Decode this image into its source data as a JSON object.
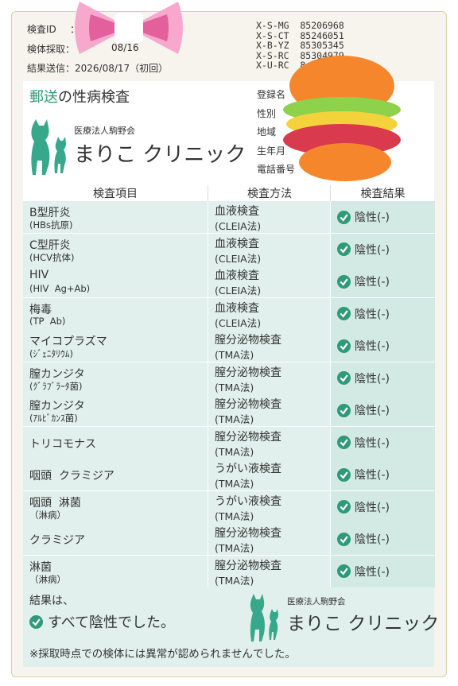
{
  "header": {
    "id_label": "検査ID",
    "id_sep": "：",
    "collect_label": "検体採取：",
    "collect_date": "08/16",
    "sent": "結果送信：2026/08/17（初回）",
    "codes": [
      "X-S-MG  85206968",
      "X-S-CT  85246051",
      "X-B-YZ  85305345",
      "X-S-RC  85304979",
      "X-U-RC  8"
    ]
  },
  "panel": {
    "title_highlight": "郵送",
    "title_rest": "の性病検査",
    "clinic_org": "医療法人駒野会",
    "clinic_name": "まりこ クリニック",
    "fields": [
      "登録名",
      "性別",
      "地域",
      "生年月",
      "電話番号"
    ]
  },
  "table": {
    "headers": [
      "検査項目",
      "検査方法",
      "検査結果"
    ],
    "rows": [
      {
        "item": "B型肝炎",
        "item_sub": "(HBs抗原)",
        "method": "血液検査",
        "method_sub": "(CLEIA法)",
        "result": "陰性(-)"
      },
      {
        "item": "C型肝炎",
        "item_sub": "(HCV抗体)",
        "method": "血液検査",
        "method_sub": "(CLEIA法)",
        "result": "陰性(-)"
      },
      {
        "item": "HIV",
        "item_sub": "(HIV  Ag+Ab)",
        "method": "血液検査",
        "method_sub": "(CLEIA法)",
        "result": "陰性(-)"
      },
      {
        "item": "梅毒",
        "item_sub": "(TP  Ab)",
        "method": "血液検査",
        "method_sub": "(CLEIA法)",
        "result": "陰性(-)"
      },
      {
        "item": "マイコプラズマ",
        "item_sub": "(ｼﾞｪﾆﾀﾘｳﾑ)",
        "method": "膣分泌物検査",
        "method_sub": "(TMA法)",
        "result": "陰性(-)"
      },
      {
        "item": "膣カンジタ",
        "item_sub": "(ｸﾞﾗﾌﾞﾗｰﾀ菌)",
        "method": "膣分泌物検査",
        "method_sub": "(TMA法)",
        "result": "陰性(-)"
      },
      {
        "item": "膣カンジタ",
        "item_sub": "(ｱﾙﾋﾞｶﾝｽ菌)",
        "method": "膣分泌物検査",
        "method_sub": "(TMA法)",
        "result": "陰性(-)"
      },
      {
        "item": "トリコモナス",
        "method": "膣分泌物検査",
        "method_sub": "(TMA法)",
        "result": "陰性(-)"
      },
      {
        "item": "咽頭  クラミジア",
        "method": "うがい液検査",
        "method_sub": "(TMA法)",
        "result": "陰性(-)"
      },
      {
        "item": "咽頭  淋菌",
        "item_sub": "（淋病）",
        "method": "うがい液検査",
        "method_sub": "(TMA法)",
        "result": "陰性(-)"
      },
      {
        "item": "クラミジア",
        "method": "膣分泌物検査",
        "method_sub": "(TMA法)",
        "result": "陰性(-)"
      },
      {
        "item": "淋菌",
        "item_sub": "（淋病）",
        "method": "膣分泌物検査",
        "method_sub": "(TMA法)",
        "result": "陰性(-)"
      }
    ]
  },
  "footer": {
    "lead": "結果は、",
    "summary": "すべて陰性でした。",
    "clinic_org": "医療法人駒野会",
    "clinic_name": "まりこ クリニック",
    "note": "※採取時点での検体には異常が認められませんでした。"
  }
}
